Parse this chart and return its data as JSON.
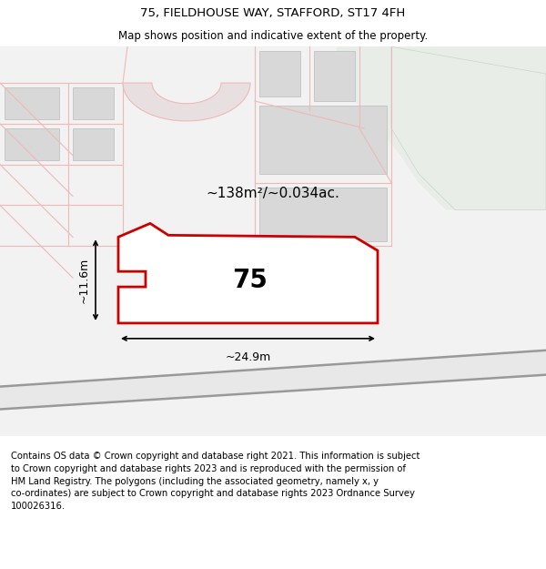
{
  "title": "75, FIELDHOUSE WAY, STAFFORD, ST17 4FH",
  "subtitle": "Map shows position and indicative extent of the property.",
  "footer_lines": [
    "Contains OS data © Crown copyright and database right 2021. This information is subject",
    "to Crown copyright and database rights 2023 and is reproduced with the permission of",
    "HM Land Registry. The polygons (including the associated geometry, namely x, y",
    "co-ordinates) are subject to Crown copyright and database rights 2023 Ordnance Survey",
    "100026316."
  ],
  "area_label": "~138m²/~0.034ac.",
  "width_label": "~24.9m",
  "height_label": "~11.6m",
  "plot_number": "75",
  "bg_color": "#ffffff",
  "map_bg": "#f0f0f0",
  "plot_outline_color": "#cc0000",
  "street_line_color": "#f0b8b8",
  "green_area_color": "#e8ede8",
  "building_color": "#d8d8d8",
  "title_fontsize": 9.5,
  "subtitle_fontsize": 8.5,
  "footer_fontsize": 7.2
}
